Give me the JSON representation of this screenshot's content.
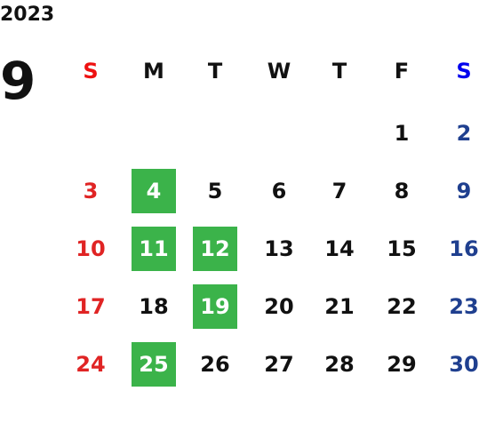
{
  "year": "2023",
  "month": "9",
  "weekdays": [
    "S",
    "M",
    "T",
    "W",
    "T",
    "F",
    "S"
  ],
  "weeks": [
    [
      null,
      null,
      null,
      null,
      null,
      "1",
      "2"
    ],
    [
      "3",
      "4",
      "5",
      "6",
      "7",
      "8",
      "9"
    ],
    [
      "10",
      "11",
      "12",
      "13",
      "14",
      "15",
      "16"
    ],
    [
      "17",
      "18",
      "19",
      "20",
      "21",
      "22",
      "23"
    ],
    [
      "24",
      "25",
      "26",
      "27",
      "28",
      "29",
      "30"
    ]
  ],
  "highlighted": [
    "4",
    "11",
    "12",
    "19",
    "25"
  ],
  "colors": {
    "sunday_header": "#ee1111",
    "saturday_header": "#0000ee",
    "sunday": "#e02424",
    "saturday": "#1f3f8f",
    "weekday": "#111111",
    "highlight": "#3bb34a",
    "highlight_text": "#ffffff"
  }
}
